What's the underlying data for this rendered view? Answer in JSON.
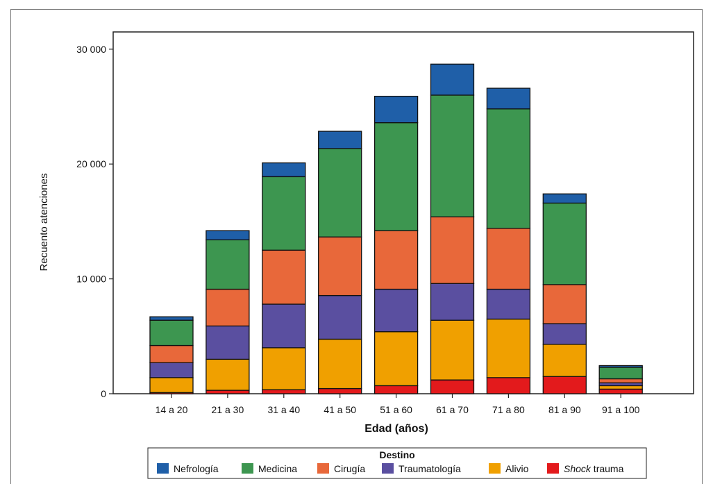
{
  "chart_data": {
    "type": "bar",
    "stacked": true,
    "xlabel": "Edad (años)",
    "ylabel": "Recuento atenciones",
    "ylim": [
      0,
      31500
    ],
    "yticks": [
      0,
      10000,
      20000,
      30000
    ],
    "ytick_labels": [
      "0",
      "10 000",
      "20 000",
      "30 000"
    ],
    "categories": [
      "14 a 20",
      "21 a 30",
      "31 a 40",
      "41 a 50",
      "51 a 60",
      "61 a 70",
      "71 a 80",
      "81 a 90",
      "91 a 100"
    ],
    "series": [
      {
        "name": "Shock trauma",
        "name_prefix": "Shock",
        "name_suffix": " trauma",
        "color": "#e31a1c",
        "values": [
          100,
          300,
          350,
          450,
          700,
          1200,
          1400,
          1500,
          400
        ]
      },
      {
        "name": "Alivio",
        "color": "#f0a000",
        "values": [
          1300,
          2700,
          3650,
          4300,
          4700,
          5200,
          5100,
          2800,
          300
        ]
      },
      {
        "name": "Traumatología",
        "color": "#5a4fa0",
        "values": [
          1300,
          2900,
          3800,
          3800,
          3700,
          3200,
          2600,
          1800,
          250
        ]
      },
      {
        "name": "Cirugía",
        "color": "#e8683a",
        "values": [
          1500,
          3200,
          4700,
          5100,
          5100,
          5800,
          5300,
          3400,
          350
        ]
      },
      {
        "name": "Medicina",
        "color": "#3d9650",
        "values": [
          2200,
          4300,
          6400,
          7700,
          9400,
          10600,
          10400,
          7100,
          1000
        ]
      },
      {
        "name": "Nefrología",
        "color": "#1f5fa8",
        "values": [
          300,
          800,
          1200,
          1500,
          2300,
          2700,
          1800,
          800,
          150
        ]
      }
    ],
    "legend": {
      "title": "Destino",
      "placement": "bottom",
      "order": [
        "Nefrología",
        "Medicina",
        "Cirugía",
        "Traumatología",
        "Alivio",
        "Shock trauma"
      ]
    },
    "grid": false
  }
}
